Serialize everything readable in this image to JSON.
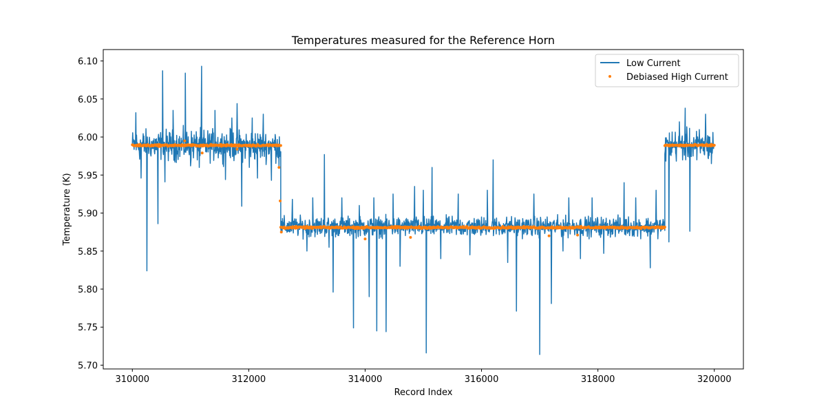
{
  "chart_data": {
    "type": "line",
    "title": "Temperatures measured for the Reference Horn",
    "xlabel": "Record Index",
    "ylabel": "Temperature (K)",
    "xlim": [
      309500,
      320500
    ],
    "ylim": [
      5.695,
      6.115
    ],
    "xticks": [
      310000,
      312000,
      314000,
      316000,
      318000,
      320000
    ],
    "xtick_labels": [
      "310000",
      "312000",
      "314000",
      "316000",
      "318000",
      "320000"
    ],
    "yticks": [
      5.7,
      5.75,
      5.8,
      5.85,
      5.9,
      5.95,
      6.0,
      6.05,
      6.1
    ],
    "ytick_labels": [
      "5.70",
      "5.75",
      "5.80",
      "5.85",
      "5.90",
      "5.95",
      "6.00",
      "6.05",
      "6.10"
    ],
    "grid": false,
    "legend_position": "top-right",
    "series": [
      {
        "name": "Low Current",
        "kind": "line",
        "color": "#1f77b4",
        "segments": [
          {
            "x_start": 310000,
            "x_end": 312550,
            "mean": 5.989,
            "band_low": 5.962,
            "band_high": 6.018
          },
          {
            "x_start": 312550,
            "x_end": 319150,
            "mean": 5.882,
            "band_low": 5.862,
            "band_high": 5.898
          },
          {
            "x_start": 319150,
            "x_end": 320000,
            "mean": 5.989,
            "band_low": 5.962,
            "band_high": 6.018
          }
        ],
        "spikes": [
          [
            310060,
            6.032
          ],
          [
            310150,
            5.946
          ],
          [
            310250,
            5.824
          ],
          [
            310320,
            5.975
          ],
          [
            310440,
            5.886
          ],
          [
            310520,
            6.087
          ],
          [
            310560,
            5.941
          ],
          [
            310700,
            6.035
          ],
          [
            310910,
            6.084
          ],
          [
            311000,
            5.962
          ],
          [
            311150,
            5.96
          ],
          [
            311190,
            6.093
          ],
          [
            311420,
            6.035
          ],
          [
            311600,
            5.944
          ],
          [
            311710,
            6.025
          ],
          [
            311800,
            6.044
          ],
          [
            311880,
            5.909
          ],
          [
            312010,
            5.96
          ],
          [
            312060,
            6.025
          ],
          [
            312150,
            5.946
          ],
          [
            312250,
            6.03
          ],
          [
            312390,
            5.943
          ],
          [
            312520,
            5.962
          ],
          [
            312750,
            5.918
          ],
          [
            313000,
            5.85
          ],
          [
            313100,
            5.92
          ],
          [
            313300,
            5.977
          ],
          [
            313380,
            5.855
          ],
          [
            313450,
            5.796
          ],
          [
            313600,
            5.92
          ],
          [
            313800,
            5.749
          ],
          [
            313900,
            5.91
          ],
          [
            314000,
            5.88
          ],
          [
            314070,
            5.79
          ],
          [
            314150,
            5.92
          ],
          [
            314200,
            5.745
          ],
          [
            314360,
            5.744
          ],
          [
            314480,
            5.925
          ],
          [
            314600,
            5.83
          ],
          [
            314850,
            5.935
          ],
          [
            315000,
            5.93
          ],
          [
            315050,
            5.716
          ],
          [
            315150,
            5.96
          ],
          [
            315300,
            5.84
          ],
          [
            315600,
            5.925
          ],
          [
            315800,
            5.845
          ],
          [
            316100,
            5.93
          ],
          [
            316200,
            5.97
          ],
          [
            316450,
            5.835
          ],
          [
            316600,
            5.771
          ],
          [
            316900,
            5.925
          ],
          [
            317000,
            5.714
          ],
          [
            317200,
            5.781
          ],
          [
            317400,
            5.85
          ],
          [
            317500,
            5.92
          ],
          [
            317700,
            5.84
          ],
          [
            317900,
            5.92
          ],
          [
            318100,
            5.847
          ],
          [
            318450,
            5.94
          ],
          [
            318650,
            5.92
          ],
          [
            318900,
            5.828
          ],
          [
            319000,
            5.93
          ],
          [
            319220,
            5.862
          ],
          [
            319400,
            6.02
          ],
          [
            319500,
            6.038
          ],
          [
            319580,
            5.876
          ],
          [
            319700,
            5.97
          ],
          [
            319850,
            6.03
          ],
          [
            319950,
            5.965
          ]
        ]
      },
      {
        "name": "Debiased High Current",
        "kind": "scatter",
        "color": "#ff7f0e",
        "segments": [
          {
            "x_start": 310000,
            "x_end": 312550,
            "mean": 5.989
          },
          {
            "x_start": 312550,
            "x_end": 319150,
            "mean": 5.881
          },
          {
            "x_start": 319150,
            "x_end": 320000,
            "mean": 5.989
          }
        ],
        "outliers": [
          [
            310900,
            5.995
          ],
          [
            311200,
            5.979
          ],
          [
            311800,
            5.984
          ],
          [
            312520,
            5.96
          ],
          [
            312540,
            5.916
          ],
          [
            312560,
            5.875
          ],
          [
            314000,
            5.866
          ],
          [
            314780,
            5.868
          ],
          [
            317160,
            5.87
          ],
          [
            317650,
            5.871
          ]
        ]
      }
    ]
  }
}
